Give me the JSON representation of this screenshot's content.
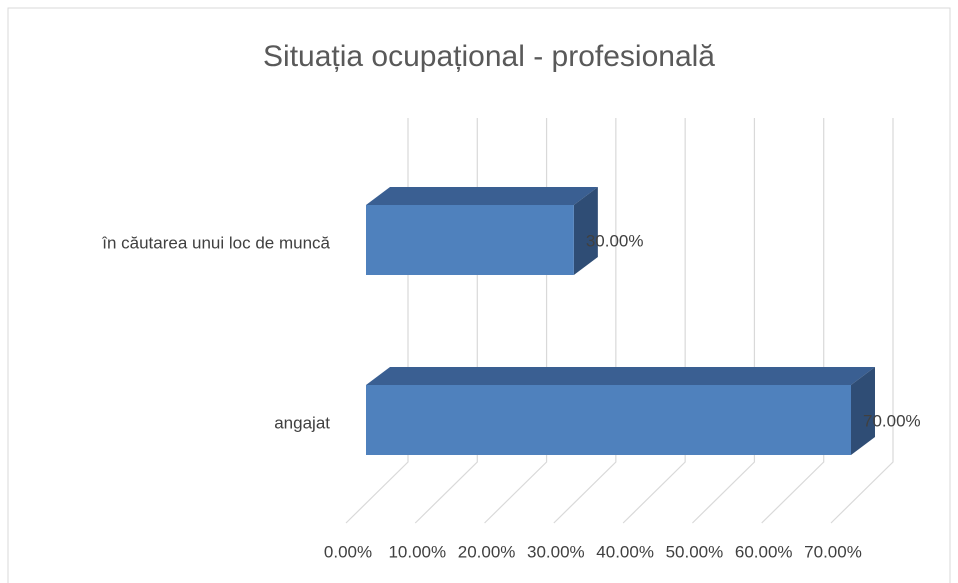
{
  "chart_data": {
    "type": "bar3d_horizontal",
    "title": "Situația ocupațional - profesională",
    "categories": [
      "în căutarea unui loc de muncă",
      "angajat"
    ],
    "values": [
      30,
      70
    ],
    "value_labels": [
      "30.00%",
      "70.00%"
    ],
    "color": "#4f81bd",
    "xlim": [
      0,
      70
    ],
    "xticks": [
      {
        "value": 0,
        "label": "0.00%"
      },
      {
        "value": 10,
        "label": "10.00%"
      },
      {
        "value": 20,
        "label": "20.00%"
      },
      {
        "value": 30,
        "label": "30.00%"
      },
      {
        "value": 40,
        "label": "40.00%"
      },
      {
        "value": 50,
        "label": "50.00%"
      },
      {
        "value": 60,
        "label": "60.00%"
      },
      {
        "value": 70,
        "label": "70.00%"
      }
    ],
    "grid": true
  }
}
